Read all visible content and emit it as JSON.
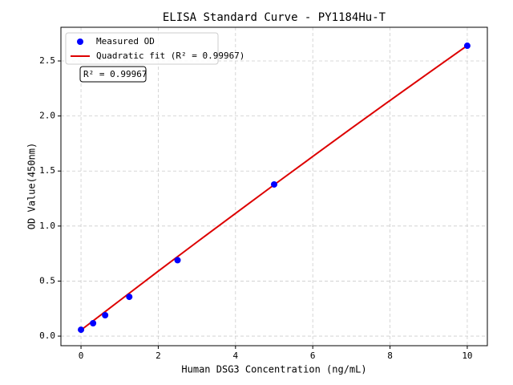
{
  "chart_data": {
    "type": "scatter",
    "title": "ELISA Standard Curve - PY1184Hu-T",
    "x_label": "Human DSG3 Concentration (ng/mL)",
    "y_label": "OD Value(450nm)",
    "series": [
      {
        "name": "Measured OD",
        "type": "scatter",
        "color": "#0000ff",
        "x": [
          0,
          0.3125,
          0.625,
          1.25,
          2.5,
          5,
          10
        ],
        "values": [
          0.058,
          0.117,
          0.19,
          0.357,
          0.69,
          1.378,
          2.638
        ]
      },
      {
        "name": "Quadratic fit (R² = 0.99967)",
        "type": "line",
        "color": "#dd0000",
        "x": [
          0,
          1,
          2,
          3,
          4,
          5,
          6,
          7,
          8,
          9,
          10
        ],
        "values": [
          0.055,
          0.323,
          0.59,
          0.854,
          1.115,
          1.375,
          1.632,
          1.888,
          2.141,
          2.391,
          2.64
        ]
      }
    ],
    "annotation": "R² = 0.99967",
    "xlim": [
      -0.52,
      10.52
    ],
    "ylim": [
      -0.087,
      2.806
    ],
    "xticks": [
      0,
      2,
      4,
      6,
      8,
      10
    ],
    "yticks": [
      {
        "value": 0,
        "label": "0.0"
      },
      0.5,
      {
        "value": 1,
        "label": "1.0"
      },
      1.5,
      {
        "value": 2,
        "label": "2.0"
      },
      2.5
    ],
    "grid": true,
    "legend": "upper left"
  }
}
